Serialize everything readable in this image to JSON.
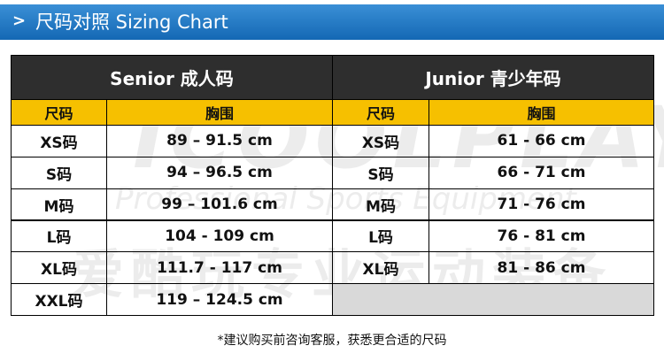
{
  "header": {
    "title": "尺码对照 Sizing Chart"
  },
  "watermark": {
    "brand": "ICOOLPLAY",
    "slogan_en": "Professional Sports Equipment",
    "slogan_cn": "爱酷玩专业运动装备"
  },
  "table": {
    "groups": [
      "Senior 成人码",
      "Junior 青少年码"
    ],
    "columns": [
      "尺码",
      "胸围",
      "尺码",
      "胸围"
    ],
    "rows": [
      [
        "XS码",
        "89 – 91.5 cm",
        "XS码",
        "61 - 66 cm"
      ],
      [
        "S码",
        "94 – 96.5 cm",
        "S码",
        "66 - 71 cm"
      ],
      [
        "M码",
        "99 – 101.6 cm",
        "M码",
        "71 - 76 cm"
      ],
      [
        "L码",
        "104 - 109 cm",
        "L码",
        "76 - 81 cm"
      ],
      [
        "XL码",
        "111.7 - 117 cm",
        "XL码",
        "81 - 86 cm"
      ],
      [
        "XXL码",
        "119 – 124.5 cm"
      ]
    ]
  },
  "footer": {
    "note": "*建议购买前咨询客服，获悉更合适的尺码"
  }
}
